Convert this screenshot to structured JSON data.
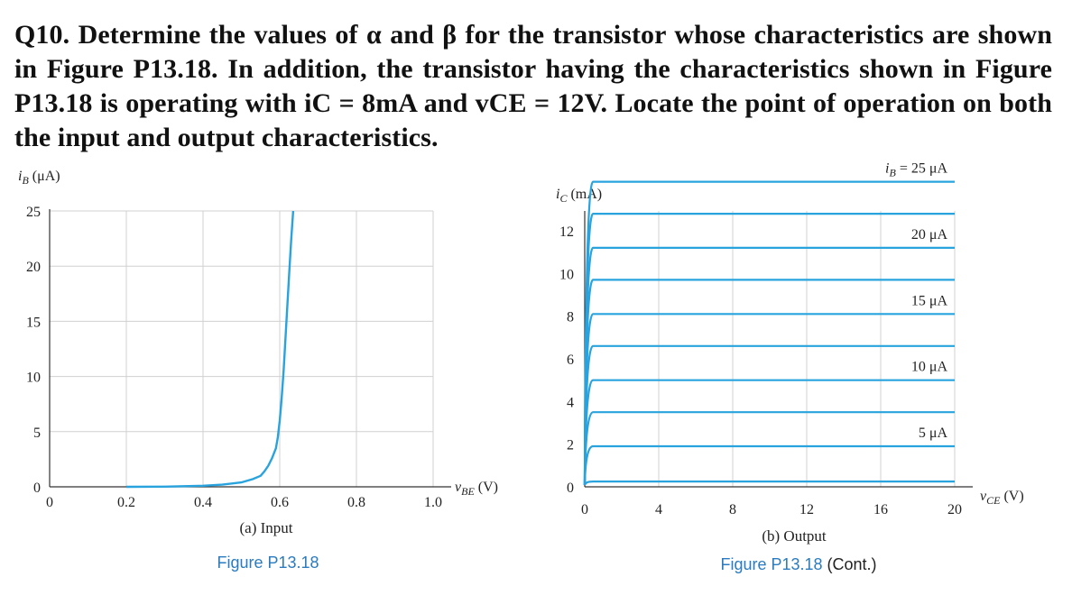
{
  "question": {
    "text": "Q10. Determine the values of α and β for the transistor whose characteristics are shown in Figure P13.18. In addition, the transistor having the characteristics shown in Figure P13.18 is operating with iC = 8mA and vCE = 12V. Locate the point of operation on both the input and output characteristics."
  },
  "colors": {
    "curve": "#29a3de",
    "grid": "#d0d0d0",
    "axis": "#333333",
    "figure_caption": "#2a7bbf"
  },
  "chart_data": [
    {
      "type": "line",
      "ylabel": "iB (μA)",
      "xlabel": "vBE (V)",
      "caption": "(a) Input",
      "figure_caption": "Figure P13.18",
      "xlim": [
        0,
        1.0
      ],
      "ylim": [
        0,
        25
      ],
      "x_ticks": [
        "0",
        "0.2",
        "0.4",
        "0.6",
        "0.8",
        "1.0"
      ],
      "y_ticks": [
        "0",
        "5",
        "10",
        "15",
        "20",
        "25"
      ],
      "grid": true,
      "series": [
        {
          "x": [
            0.2,
            0.3,
            0.4,
            0.45,
            0.5,
            0.53,
            0.55,
            0.56,
            0.57,
            0.58,
            0.59,
            0.595,
            0.6,
            0.605,
            0.61,
            0.615,
            0.62,
            0.625,
            0.63,
            0.635
          ],
          "y": [
            0,
            0.02,
            0.1,
            0.2,
            0.4,
            0.7,
            1.0,
            1.4,
            1.9,
            2.6,
            3.5,
            4.5,
            6.0,
            8.0,
            10.5,
            13.5,
            16.5,
            19.5,
            22.5,
            25
          ]
        }
      ]
    },
    {
      "type": "line",
      "ylabel": "iC (mA)",
      "xlabel": "vCE (V)",
      "caption": "(b) Output",
      "figure_caption": "Figure P13.18",
      "figure_caption_suffix": "(Cont.)",
      "xlim": [
        0,
        20
      ],
      "ylim": [
        0,
        12
      ],
      "x_ticks": [
        "0",
        "4",
        "8",
        "12",
        "16",
        "20"
      ],
      "y_ticks": [
        "0",
        "2",
        "4",
        "6",
        "8",
        "10",
        "12"
      ],
      "grid": true,
      "series": [
        {
          "label": "",
          "ic_mA": 0.25
        },
        {
          "label": "5 μA",
          "ic_mA": 1.9
        },
        {
          "label": "",
          "ic_mA": 3.5
        },
        {
          "label": "10 μA",
          "ic_mA": 5.0
        },
        {
          "label": "",
          "ic_mA": 6.6
        },
        {
          "label": "15 μA",
          "ic_mA": 8.1
        },
        {
          "label": "",
          "ic_mA": 9.7
        },
        {
          "label": "20 μA",
          "ic_mA": 11.2
        },
        {
          "label": "",
          "ic_mA": 12.8
        },
        {
          "label": "iB = 25 μA",
          "ic_mA": 14.3
        }
      ]
    }
  ]
}
